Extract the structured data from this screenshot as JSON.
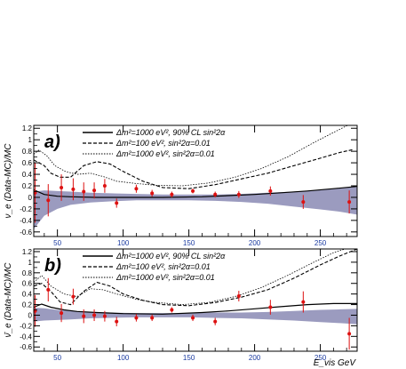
{
  "chart_data": [
    {
      "type": "line",
      "panel_label": "a)",
      "ylabel": "ν_e (Data-MC)/MC",
      "xlabel": "",
      "xlim": [
        32,
        278
      ],
      "ylim": [
        -0.68,
        1.25
      ],
      "x_ticks": [
        50,
        100,
        150,
        200,
        250
      ],
      "y_ticks": [
        -0.6,
        -0.4,
        -0.2,
        0,
        0.2,
        0.4,
        0.6,
        0.8,
        1,
        1.2
      ],
      "y_tick_labels": [
        "-0.6",
        "-0.4",
        "-0.2",
        "0",
        "0.2",
        "0.4",
        "0.6",
        "0.8",
        "1",
        "1.2"
      ],
      "grid": false,
      "legend_position": "top",
      "legend": [
        {
          "style": "solid",
          "label": "Δm²=1000 eV², 90% CL sin²2α"
        },
        {
          "style": "dashed",
          "label": "Δm²=100 eV², sin²2α=0.01"
        },
        {
          "style": "dotted",
          "label": "Δm²=1000 eV², sin²2α=0.01"
        }
      ],
      "band": {
        "color": "#9b9bbf",
        "x": [
          32,
          40,
          50,
          60,
          75,
          90,
          110,
          130,
          150,
          170,
          190,
          210,
          230,
          250,
          265,
          278
        ],
        "upper": [
          0.1,
          0.12,
          0.11,
          0.1,
          0.08,
          0.07,
          0.06,
          0.05,
          0.05,
          0.05,
          0.06,
          0.08,
          0.1,
          0.13,
          0.16,
          0.18
        ],
        "lower": [
          -0.55,
          -0.32,
          -0.2,
          -0.13,
          -0.09,
          -0.07,
          -0.05,
          -0.05,
          -0.05,
          -0.06,
          -0.08,
          -0.11,
          -0.16,
          -0.21,
          -0.25,
          -0.3
        ]
      },
      "series": [
        {
          "style": "solid",
          "x": [
            32,
            40,
            50,
            60,
            80,
            100,
            130,
            160,
            180,
            200,
            220,
            240,
            260,
            278
          ],
          "y": [
            0.13,
            0.05,
            0.02,
            0.01,
            0.0,
            0.0,
            0.0,
            0.01,
            0.03,
            0.05,
            0.08,
            0.11,
            0.15,
            0.19
          ]
        },
        {
          "style": "dashed",
          "x": [
            32,
            40,
            45,
            52,
            60,
            70,
            80,
            90,
            100,
            115,
            130,
            150,
            170,
            190,
            210,
            230,
            250,
            265,
            275
          ],
          "y": [
            0.65,
            0.55,
            0.42,
            0.35,
            0.35,
            0.55,
            0.62,
            0.58,
            0.45,
            0.28,
            0.17,
            0.15,
            0.22,
            0.32,
            0.42,
            0.55,
            0.68,
            0.78,
            0.83
          ]
        },
        {
          "style": "dotted",
          "x": [
            32,
            36,
            42,
            48,
            56,
            65,
            75,
            85,
            95,
            110,
            125,
            145,
            165,
            185,
            205,
            225,
            245,
            262,
            275
          ],
          "y": [
            0.75,
            0.82,
            0.72,
            0.55,
            0.45,
            0.4,
            0.42,
            0.36,
            0.28,
            0.24,
            0.21,
            0.2,
            0.25,
            0.35,
            0.5,
            0.7,
            0.95,
            1.15,
            1.3
          ]
        }
      ],
      "points": {
        "color": "#dd1111",
        "x": [
          33,
          43,
          53,
          62,
          70,
          78,
          86,
          95,
          110,
          122,
          137,
          153,
          170,
          188,
          212,
          237,
          272
        ],
        "y": [
          0.08,
          -0.05,
          0.17,
          0.14,
          0.1,
          0.12,
          0.2,
          -0.1,
          0.15,
          0.07,
          0.05,
          0.11,
          0.05,
          0.05,
          0.11,
          -0.08,
          -0.08
        ],
        "err": [
          0.52,
          0.28,
          0.23,
          0.19,
          0.16,
          0.14,
          0.12,
          0.08,
          0.07,
          0.06,
          0.05,
          0.04,
          0.05,
          0.06,
          0.08,
          0.12,
          0.2
        ]
      }
    },
    {
      "type": "line",
      "panel_label": "b)",
      "ylabel": "ν̄_e (Data-MC)/MC",
      "xlabel": "E_vis GeV",
      "xlim": [
        32,
        278
      ],
      "ylim": [
        -0.68,
        1.25
      ],
      "x_ticks": [
        50,
        100,
        150,
        200,
        250
      ],
      "y_ticks": [
        -0.6,
        -0.4,
        -0.2,
        0,
        0.2,
        0.4,
        0.6,
        0.8,
        1,
        1.2
      ],
      "y_tick_labels": [
        "-0.6",
        "-0.4",
        "-0.2",
        "0",
        "0.2",
        "0.4",
        "0.6",
        "0.8",
        "1",
        "1.2"
      ],
      "grid": false,
      "legend_position": "top",
      "legend": [
        {
          "style": "solid",
          "label": "Δm²=1000 eV², 90% CL sin²2α"
        },
        {
          "style": "dashed",
          "label": "Δm²=100 eV², sin²2α=0.01"
        },
        {
          "style": "dotted",
          "label": "Δm²=1000 eV², sin²2α=0.01"
        }
      ],
      "band": {
        "color": "#9b9bbf",
        "x": [
          32,
          40,
          50,
          60,
          75,
          90,
          110,
          130,
          150,
          170,
          190,
          210,
          230,
          250,
          265,
          278
        ],
        "upper": [
          0.14,
          0.13,
          0.1,
          0.08,
          0.06,
          0.05,
          0.04,
          0.04,
          0.04,
          0.05,
          0.05,
          0.06,
          0.08,
          0.1,
          0.11,
          0.12
        ],
        "lower": [
          -0.12,
          -0.1,
          -0.09,
          -0.08,
          -0.06,
          -0.05,
          -0.04,
          -0.04,
          -0.04,
          -0.05,
          -0.06,
          -0.08,
          -0.1,
          -0.13,
          -0.15,
          -0.17
        ]
      },
      "series": [
        {
          "style": "solid",
          "x": [
            32,
            38,
            45,
            55,
            65,
            80,
            100,
            130,
            160,
            180,
            200,
            220,
            240,
            260,
            278
          ],
          "y": [
            0.15,
            0.21,
            0.15,
            0.1,
            0.07,
            0.05,
            0.03,
            0.02,
            0.05,
            0.08,
            0.12,
            0.16,
            0.2,
            0.22,
            0.22
          ]
        },
        {
          "style": "dashed",
          "x": [
            32,
            38,
            45,
            52,
            60,
            70,
            80,
            90,
            100,
            115,
            130,
            150,
            170,
            190,
            210,
            230,
            250,
            265,
            278
          ],
          "y": [
            0.55,
            0.6,
            0.45,
            0.25,
            0.2,
            0.45,
            0.62,
            0.55,
            0.4,
            0.28,
            0.2,
            0.18,
            0.24,
            0.34,
            0.48,
            0.7,
            0.95,
            1.12,
            1.25
          ]
        },
        {
          "style": "dotted",
          "x": [
            32,
            38,
            45,
            55,
            65,
            75,
            85,
            95,
            110,
            125,
            145,
            165,
            185,
            205,
            225,
            245,
            260,
            275
          ],
          "y": [
            0.62,
            0.75,
            0.55,
            0.4,
            0.35,
            0.5,
            0.48,
            0.4,
            0.3,
            0.24,
            0.2,
            0.24,
            0.35,
            0.52,
            0.75,
            1.0,
            1.18,
            1.3
          ]
        }
      ],
      "points": {
        "color": "#dd1111",
        "x": [
          33,
          43,
          53,
          62,
          70,
          78,
          86,
          95,
          110,
          122,
          137,
          153,
          170,
          188,
          212,
          237,
          272
        ],
        "y": [
          0.08,
          0.48,
          0.04,
          0.35,
          -0.02,
          0.0,
          -0.02,
          -0.12,
          -0.05,
          -0.05,
          0.1,
          -0.05,
          -0.12,
          0.36,
          0.15,
          0.25,
          -0.35
        ],
        "err": [
          0.3,
          0.22,
          0.17,
          0.15,
          0.13,
          0.11,
          0.1,
          0.09,
          0.07,
          0.06,
          0.05,
          0.06,
          0.07,
          0.1,
          0.14,
          0.2,
          0.3
        ]
      }
    }
  ]
}
